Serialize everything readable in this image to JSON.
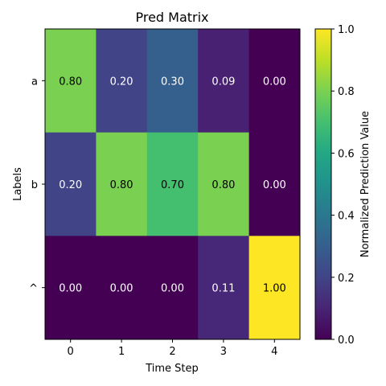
{
  "chart_data": {
    "type": "heatmap",
    "title": "Pred Matrix",
    "xlabel": "Time Step",
    "ylabel": "Labels",
    "x_categories": [
      "0",
      "1",
      "2",
      "3",
      "4"
    ],
    "y_categories": [
      "a",
      "b",
      "^"
    ],
    "values": [
      [
        0.8,
        0.2,
        0.3,
        0.09,
        0.0
      ],
      [
        0.2,
        0.8,
        0.7,
        0.8,
        0.0
      ],
      [
        0.0,
        0.0,
        0.0,
        0.11,
        1.0
      ]
    ],
    "value_labels": [
      [
        "0.80",
        "0.20",
        "0.30",
        "0.09",
        "0.00"
      ],
      [
        "0.20",
        "0.80",
        "0.70",
        "0.80",
        "0.00"
      ],
      [
        "0.00",
        "0.00",
        "0.00",
        "0.11",
        "1.00"
      ]
    ],
    "colorbar": {
      "label": "Normalized Prediction Value",
      "range": [
        0.0,
        1.0
      ],
      "ticks": [
        "0.0",
        "0.2",
        "0.4",
        "0.6",
        "0.8",
        "1.0"
      ],
      "colormap": "viridis"
    },
    "grid": false
  }
}
